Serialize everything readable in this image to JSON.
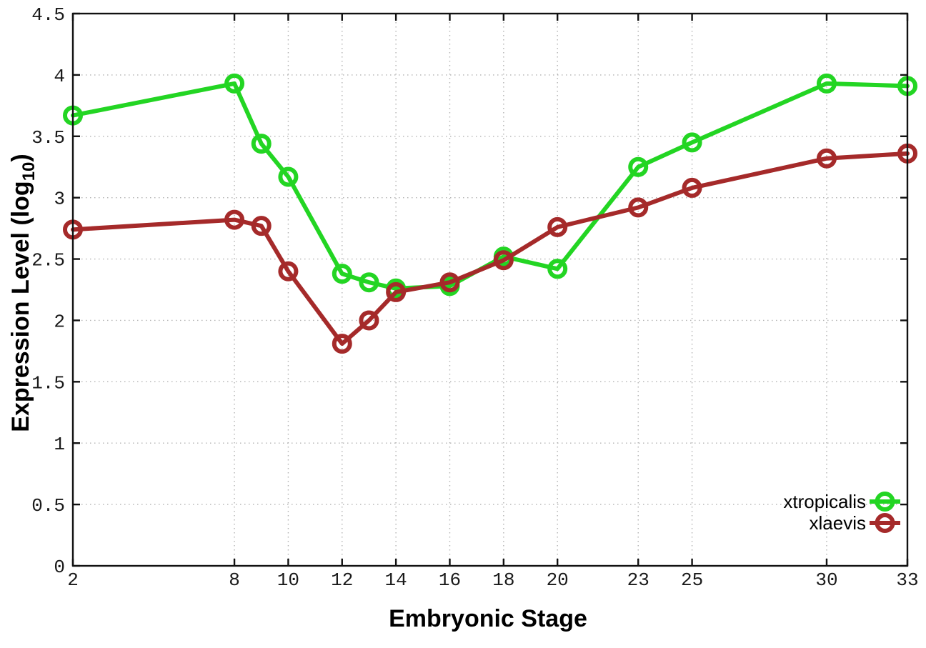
{
  "chart_data": {
    "type": "line",
    "title": "",
    "xlabel": "Embryonic Stage",
    "ylabel": "Expression Level (log10)",
    "ylabel_parts": {
      "pre": "Expression Level (log",
      "sub": "10",
      "post": ")"
    },
    "xlim": [
      2,
      33
    ],
    "ylim": [
      0,
      4.5
    ],
    "x_ticks": [
      2,
      8,
      10,
      12,
      14,
      16,
      18,
      20,
      23,
      25,
      30,
      33
    ],
    "x_tick_labels": [
      "2",
      "8",
      "10",
      "12",
      "14",
      "16",
      "18",
      "20",
      "23",
      "25",
      "30",
      "33"
    ],
    "y_ticks": [
      0,
      0.5,
      1,
      1.5,
      2,
      2.5,
      3,
      3.5,
      4,
      4.5
    ],
    "y_tick_labels": [
      "0",
      "0.5",
      "1",
      "1.5",
      "2",
      "2.5",
      "3",
      "3.5",
      "4",
      "4.5"
    ],
    "grid": true,
    "grid_color": "#b3b3b3",
    "axis_color": "#111111",
    "background_color": "#ffffff",
    "marker": "open-circle",
    "legend_position": "inside-right-lower",
    "x": [
      2,
      8,
      9,
      10,
      12,
      13,
      14,
      16,
      18,
      20,
      23,
      25,
      30,
      33
    ],
    "series": [
      {
        "name": "xtropicalis",
        "color": "#23d523",
        "values": [
          3.67,
          3.93,
          3.44,
          3.17,
          2.38,
          2.31,
          2.26,
          2.28,
          2.52,
          2.42,
          3.25,
          3.45,
          3.93,
          3.91
        ]
      },
      {
        "name": "xlaevis",
        "color": "#a52a2a",
        "values": [
          2.74,
          2.82,
          2.77,
          2.4,
          1.81,
          2.0,
          2.23,
          2.31,
          2.49,
          2.76,
          2.92,
          3.08,
          3.32,
          3.36
        ]
      }
    ]
  }
}
